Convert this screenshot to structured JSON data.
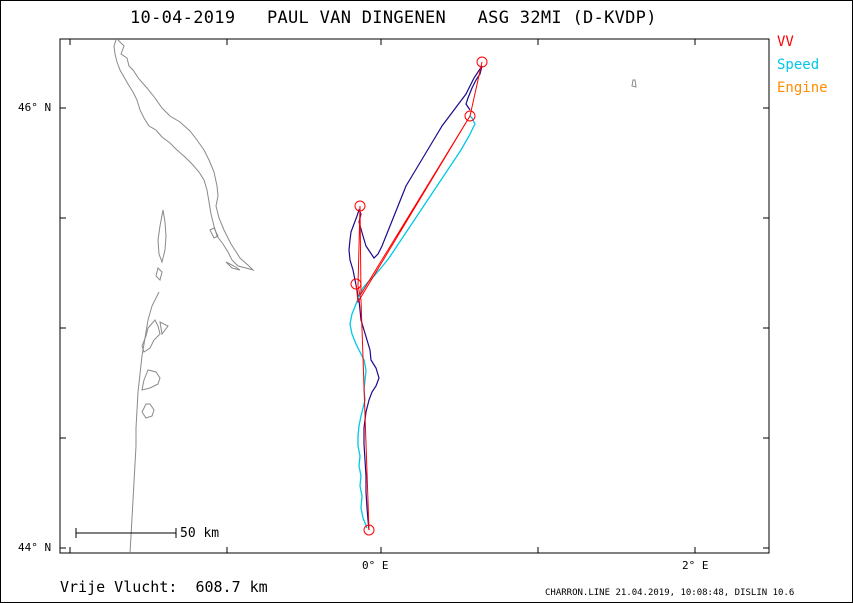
{
  "title": "10-04-2019   PAUL VAN DINGENEN   ASG 32MI (D-KVDP)",
  "legend": {
    "vv": "VV",
    "speed": "Speed",
    "engine": "Engine",
    "colors": {
      "vv": "#ff0000",
      "speed": "#00c8e6",
      "engine": "#ff8c00",
      "track": "#1a0a8c"
    }
  },
  "axes": {
    "y_labels": [
      "46° N",
      "44° N"
    ],
    "x_labels": [
      "0° E",
      "2° E"
    ]
  },
  "scale_bar": {
    "label": "50 km"
  },
  "footer": {
    "distance": "Vrije Vlucht:  608.7 km",
    "stamp": "CHARRON.LINE 21.04.2019, 10:08:48, DISLIN 10.6"
  }
}
